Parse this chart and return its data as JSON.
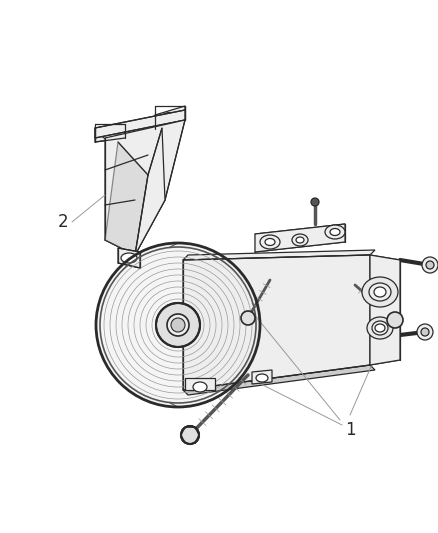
{
  "background_color": "#ffffff",
  "figure_width": 4.38,
  "figure_height": 5.33,
  "dpi": 100,
  "label_1": "1",
  "label_2": "2",
  "line_color": "#2a2a2a",
  "line_width": 0.9,
  "light_gray": "#cccccc",
  "mid_gray": "#999999",
  "dark_gray": "#555555",
  "very_light": "#eeeeee"
}
